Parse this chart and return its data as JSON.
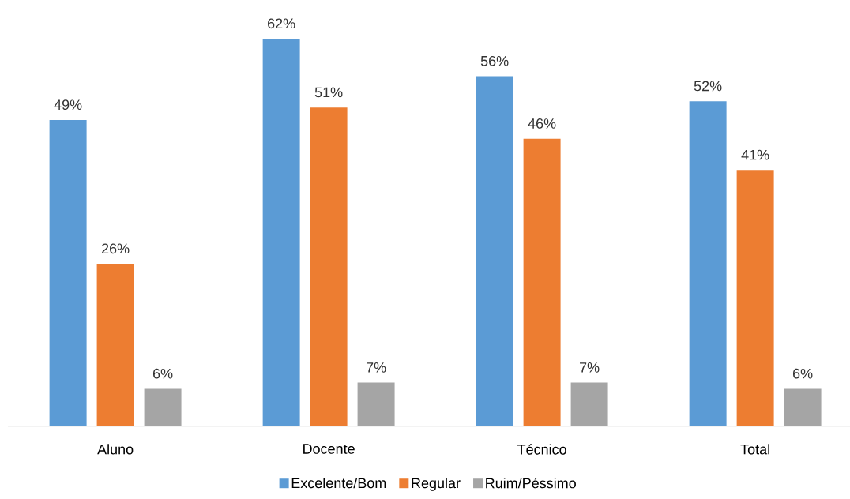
{
  "chart_data": {
    "type": "bar",
    "categories": [
      "Aluno",
      "Docente",
      "Técnico",
      "Total"
    ],
    "series": [
      {
        "name": "Excelente/Bom",
        "color": "#5b9bd5",
        "values": [
          49,
          62,
          56,
          52
        ],
        "value_labels": [
          "49%",
          "62%",
          "56%",
          "52%"
        ]
      },
      {
        "name": "Regular",
        "color": "#ed7d31",
        "values": [
          26,
          51,
          46,
          41
        ],
        "value_labels": [
          "26%",
          "51%",
          "46%",
          "41%"
        ]
      },
      {
        "name": "Ruim/Péssimo",
        "color": "#a5a5a5",
        "values": [
          6,
          7,
          7,
          6
        ],
        "value_labels": [
          "6%",
          "7%",
          "7%",
          "6%"
        ]
      }
    ],
    "legend": "bottom"
  }
}
